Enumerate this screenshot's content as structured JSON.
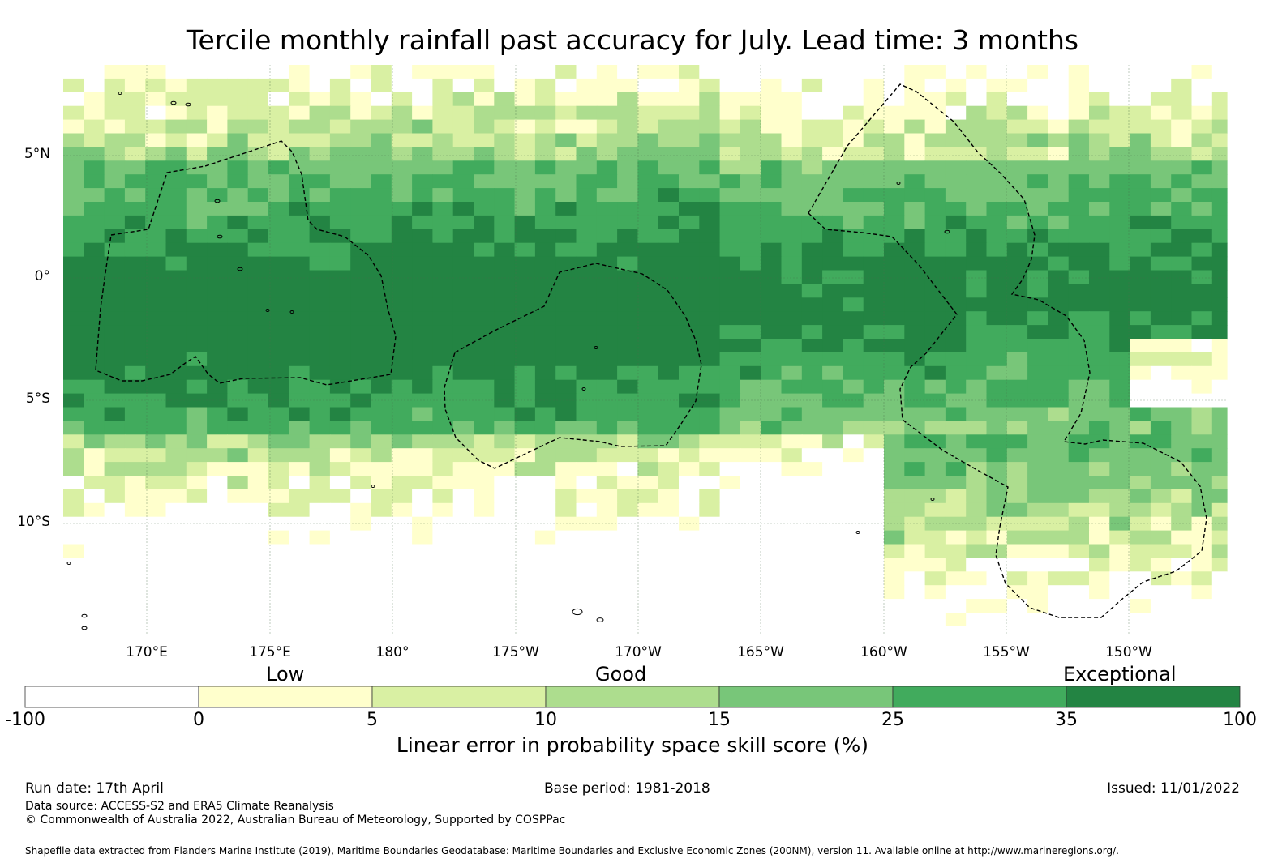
{
  "title": "Tercile monthly rainfall past accuracy for July. Lead time: 3 months",
  "map": {
    "lon_ticks": [
      "170°E",
      "175°E",
      "180°",
      "175°W",
      "170°W",
      "165°W",
      "160°W",
      "155°W",
      "150°W"
    ],
    "lat_ticks": [
      "5°N",
      "0°",
      "5°S",
      "10°S"
    ],
    "extent": {
      "lon_min": 166.6,
      "lon_max": 213.9,
      "lat_min": -14.5,
      "lat_max": 8.7
    }
  },
  "legend": {
    "categories": [
      "Low",
      "Good",
      "Exceptional"
    ],
    "bins": [
      {
        "from": -100,
        "to": 0,
        "color": "#ffffff"
      },
      {
        "from": 0,
        "to": 5,
        "color": "#ffffcc"
      },
      {
        "from": 5,
        "to": 10,
        "color": "#d9f0a3"
      },
      {
        "from": 10,
        "to": 15,
        "color": "#addd8e"
      },
      {
        "from": 15,
        "to": 25,
        "color": "#78c679"
      },
      {
        "from": 25,
        "to": 35,
        "color": "#41ab5d"
      },
      {
        "from": 35,
        "to": 100,
        "color": "#238443"
      }
    ],
    "tick_labels": [
      "-100",
      "0",
      "5",
      "10",
      "15",
      "25",
      "35",
      "100"
    ],
    "title": "Linear error in probability space skill score (%)"
  },
  "footer": {
    "run_date": "Run date: 17th April",
    "base_period": "Base period: 1981-2018",
    "issued": "Issued: 11/01/2022",
    "data_source": "Data source: ACCESS-S2 and ERA5 Climate Reanalysis",
    "copyright": "© Commonwealth of Australia 2022, Australian Bureau of Meteorology, Supported by COSPPac",
    "shapefile": "Shapefile data extracted from Flanders Marine Institute (2019), Maritime Boundaries Geodatabase: Maritime Boundaries and Exclusive Economic Zones (200NM), version 11. Available online at http://www.marineregions.org/."
  }
}
